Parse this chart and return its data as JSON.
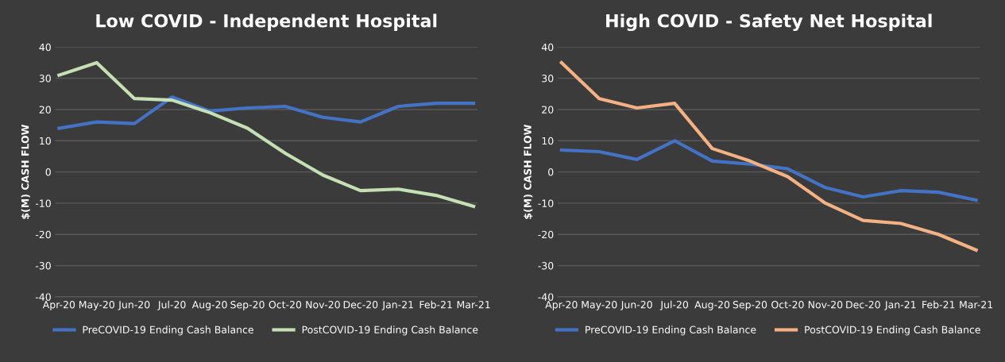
{
  "chart_data": [
    {
      "type": "line",
      "title": "Low COVID - Independent Hospital",
      "ylabel": "$(M) CASH FLOW",
      "categories": [
        "Apr-20",
        "May-20",
        "Jun-20",
        "Jul-20",
        "Aug-20",
        "Sep-20",
        "Oct-20",
        "Nov-20",
        "Dec-20",
        "Jan-21",
        "Feb-21",
        "Mar-21"
      ],
      "series": [
        {
          "name": "PreCOVID-19 Ending Cash Balance",
          "color": "#4472c4",
          "values": [
            14,
            16,
            15.5,
            24,
            19.5,
            20.5,
            21,
            17.5,
            16,
            21,
            22,
            22
          ]
        },
        {
          "name": "PostCOVID-19 Ending Cash Balance",
          "color": "#c5e0b4",
          "values": [
            31,
            35,
            23.5,
            23,
            19,
            14,
            6,
            -1,
            -6,
            -5.5,
            -7.5,
            -11
          ]
        }
      ],
      "ylim": [
        -40,
        40
      ],
      "yticks": [
        -40,
        -30,
        -20,
        -10,
        0,
        10,
        20,
        30,
        40
      ],
      "grid": "y",
      "legend": "bottom",
      "marker": "none",
      "line_style": "solid"
    },
    {
      "type": "line",
      "title": "High COVID - Safety Net Hospital",
      "ylabel": "$(M) CASH FLOW",
      "categories": [
        "Apr-20",
        "May-20",
        "Jun-20",
        "Jul-20",
        "Aug-20",
        "Sep-20",
        "Oct-20",
        "Nov-20",
        "Dec-20",
        "Jan-21",
        "Feb-21",
        "Mar-21"
      ],
      "series": [
        {
          "name": "PreCOVID-19 Ending Cash Balance",
          "color": "#4472c4",
          "values": [
            7,
            6.5,
            4,
            10,
            3.5,
            2.5,
            1,
            -5,
            -8,
            -6,
            -6.5,
            -9
          ]
        },
        {
          "name": "PostCOVID-19 Ending Cash Balance",
          "color": "#f4b183",
          "values": [
            35,
            23.5,
            20.5,
            22,
            7.5,
            3.5,
            -1.5,
            -10,
            -15.5,
            -16.5,
            -20,
            -25
          ]
        }
      ],
      "ylim": [
        -40,
        40
      ],
      "yticks": [
        -40,
        -30,
        -20,
        -10,
        0,
        10,
        20,
        30,
        40
      ],
      "grid": "y",
      "legend": "bottom",
      "marker": "none",
      "line_style": "solid"
    }
  ]
}
